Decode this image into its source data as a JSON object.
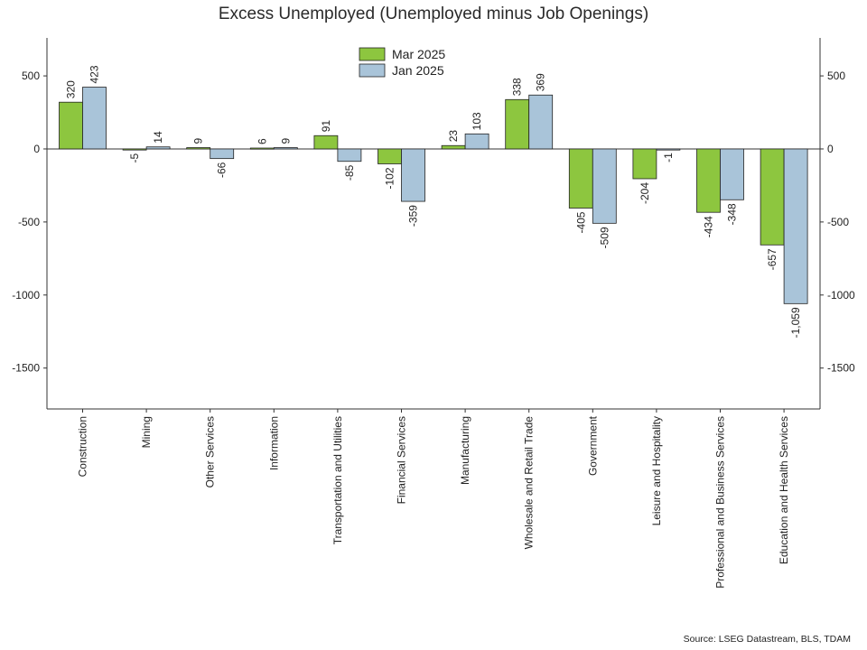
{
  "chart_data": {
    "type": "bar",
    "title": "Excess Unemployed (Unemployed minus Job Openings)",
    "source": "Source: LSEG Datastream, BLS, TDAM",
    "categories": [
      "Construction",
      "Mining",
      "Other Services",
      "Information",
      "Transportation and Utilities",
      "Financial Services",
      "Manufacturing",
      "Wholesale and Retail Trade",
      "Government",
      "Leisure and Hospitality",
      "Professional and Business Services",
      "Education and Health Services"
    ],
    "series": [
      {
        "name": "Mar 2025",
        "color": "#8dc63f",
        "values": [
          320,
          -5,
          9,
          6,
          91,
          -102,
          23,
          338,
          -405,
          -204,
          -434,
          -657
        ],
        "labels": [
          "320",
          "-5",
          "9",
          "6",
          "91",
          "-102",
          "23",
          "338",
          "-405",
          "-204",
          "-434",
          "-657"
        ]
      },
      {
        "name": "Jan 2025",
        "color": "#a9c4d9",
        "values": [
          423,
          14,
          -66,
          9,
          -85,
          -359,
          103,
          369,
          -509,
          -1,
          -348,
          -1059
        ],
        "labels": [
          "423",
          "14",
          "-66",
          "9",
          "-85",
          "-359",
          "103",
          "369",
          "-509",
          "-1",
          "-348",
          "-1,059"
        ]
      }
    ],
    "ylim": [
      -1780,
      760
    ],
    "yticks": [
      500,
      0,
      -500,
      -1000,
      -1500
    ],
    "ytick_labels": [
      "500",
      "0",
      "-500",
      "-1000",
      "-1500"
    ],
    "legend_position": "top-center",
    "grid": false
  }
}
